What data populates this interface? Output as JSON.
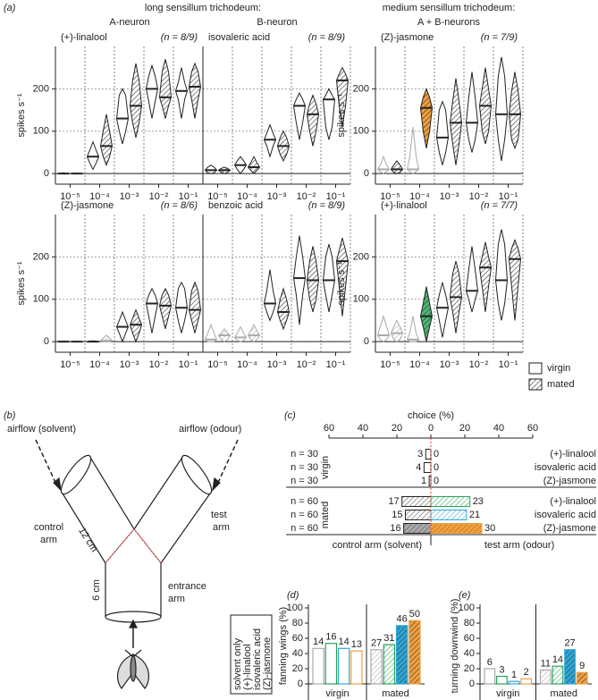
{
  "figure": {
    "panel": "(a)",
    "groups": [
      {
        "title": "long sensillum trichodeum:",
        "neurons": [
          "A-neuron",
          "B-neuron"
        ]
      },
      {
        "title": "medium sensillum trichodeum:",
        "neurons": [
          "A + B-neurons"
        ]
      }
    ],
    "legend": [
      {
        "label": "virgin",
        "hatch": false
      },
      {
        "label": "mated",
        "hatch": true
      }
    ]
  },
  "diagram": {
    "panel": "(b)",
    "airflow_left": "airflow (solvent)",
    "airflow_right": "airflow (odour)",
    "control_arm": [
      "control",
      "arm"
    ],
    "test_arm": [
      "test",
      "arm"
    ],
    "arm_length": "12 cm",
    "stem_length": "6 cm",
    "entrance_arm": [
      "entrance",
      "arm"
    ]
  },
  "chart_data": [
    {
      "type": "violin",
      "title": "(+)-linalool",
      "title_color": "#2aa357",
      "n_label": "(n = 8/9)",
      "ylabel": "spikes s⁻¹",
      "categories": [
        "10⁻⁵",
        "10⁻⁴",
        "10⁻³",
        "10⁻²",
        "10⁻¹"
      ],
      "ylim": [
        -25,
        300
      ],
      "yticks": [
        0,
        100,
        200
      ],
      "grid": true,
      "series": [
        {
          "hatch": false,
          "min": [
            0,
            10,
            70,
            130,
            130
          ],
          "q1": [
            0,
            25,
            100,
            170,
            175
          ],
          "median": [
            0,
            40,
            130,
            200,
            195
          ],
          "q3": [
            0,
            55,
            185,
            230,
            215
          ],
          "max": [
            2,
            75,
            200,
            255,
            250
          ],
          "edge_colors": [
            "#222222",
            "#222222",
            "#222222",
            "#222222",
            "#222222"
          ],
          "fill_colors": [
            "#ffffff",
            "#ffffff",
            "#ffffff",
            "#ffffff",
            "#ffffff"
          ]
        },
        {
          "hatch": true,
          "min": [
            0,
            20,
            85,
            130,
            130
          ],
          "q1": [
            0,
            40,
            120,
            160,
            175
          ],
          "median": [
            0,
            65,
            160,
            180,
            205
          ],
          "q3": [
            0,
            100,
            220,
            240,
            240
          ],
          "max": [
            1,
            140,
            260,
            270,
            260
          ],
          "edge_colors": [
            "#222222",
            "#222222",
            "#222222",
            "#222222",
            "#222222"
          ],
          "fill_colors": [
            "#ffffff",
            "#ffffff",
            "#ffffff",
            "#ffffff",
            "#ffffff"
          ]
        }
      ]
    },
    {
      "type": "violin",
      "title": "isovaleric acid",
      "title_color": "#2ea6d6",
      "n_label": "(n = 8/9)",
      "categories": [
        "10⁻⁵",
        "10⁻⁴",
        "10⁻³",
        "10⁻²",
        "10⁻¹"
      ],
      "ylim": [
        -25,
        300
      ],
      "yticks": [
        0,
        100,
        200
      ],
      "grid": true,
      "series": [
        {
          "hatch": false,
          "min": [
            0,
            0,
            40,
            80,
            80
          ],
          "q1": [
            2,
            10,
            65,
            120,
            110
          ],
          "median": [
            8,
            20,
            80,
            160,
            175
          ],
          "q3": [
            15,
            30,
            95,
            175,
            185
          ],
          "max": [
            20,
            40,
            115,
            190,
            200
          ],
          "edge_colors": [
            "#222222",
            "#222222",
            "#222222",
            "#222222",
            "#222222"
          ],
          "fill_colors": [
            "#ffffff",
            "#ffffff",
            "#ffffff",
            "#ffffff",
            "#ffffff"
          ]
        },
        {
          "hatch": true,
          "min": [
            0,
            0,
            30,
            65,
            110
          ],
          "q1": [
            3,
            8,
            45,
            100,
            160
          ],
          "median": [
            8,
            15,
            65,
            140,
            220
          ],
          "q3": [
            12,
            25,
            85,
            165,
            235
          ],
          "max": [
            15,
            40,
            100,
            185,
            250
          ],
          "edge_colors": [
            "#222222",
            "#222222",
            "#222222",
            "#222222",
            "#222222"
          ],
          "fill_colors": [
            "#ffffff",
            "#ffffff",
            "#ffffff",
            "#ffffff",
            "#ffffff"
          ]
        }
      ]
    },
    {
      "type": "violin",
      "title": "(Z)-jasmone",
      "title_color": "#f0a040",
      "n_label": "(n = 7/9)",
      "ylabel": "spikes s⁻¹",
      "categories": [
        "10⁻⁵",
        "10⁻⁴",
        "10⁻³",
        "10⁻²",
        "10⁻¹"
      ],
      "ylim": [
        -25,
        300
      ],
      "yticks": [
        0,
        100,
        200
      ],
      "grid": true,
      "series": [
        {
          "hatch": false,
          "min": [
            0,
            0,
            20,
            50,
            30
          ],
          "q1": [
            5,
            5,
            50,
            80,
            80
          ],
          "median": [
            10,
            10,
            85,
            120,
            140
          ],
          "q3": [
            20,
            40,
            150,
            180,
            230
          ],
          "max": [
            40,
            110,
            170,
            240,
            275
          ],
          "edge_colors": [
            "#aaaaaa",
            "#aaaaaa",
            "#222222",
            "#222222",
            "#222222"
          ],
          "fill_colors": [
            "#ffffff",
            "#ffffff",
            "#ffffff",
            "#ffffff",
            "#ffffff"
          ]
        },
        {
          "hatch": true,
          "min": [
            0,
            60,
            20,
            70,
            60
          ],
          "q1": [
            3,
            100,
            70,
            100,
            80
          ],
          "median": [
            10,
            155,
            120,
            160,
            140
          ],
          "q3": [
            20,
            180,
            170,
            200,
            195
          ],
          "max": [
            30,
            200,
            225,
            250,
            240
          ],
          "edge_colors": [
            "#222222",
            "#222222",
            "#222222",
            "#222222",
            "#222222"
          ],
          "fill_colors": [
            "#ffffff",
            "#f0a040",
            "#ffffff",
            "#ffffff",
            "#ffffff"
          ]
        }
      ]
    },
    {
      "type": "violin",
      "title": "(Z)-jasmone",
      "title_color": "#f0a040",
      "n_label": "(n = 8/6)",
      "ylabel": "spikes s⁻¹",
      "categories": [
        "10⁻⁵",
        "10⁻⁴",
        "10⁻³",
        "10⁻²",
        "10⁻¹"
      ],
      "ylim": [
        -25,
        300
      ],
      "yticks": [
        0,
        100,
        200
      ],
      "grid": true,
      "series": [
        {
          "hatch": false,
          "min": [
            0,
            0,
            0,
            20,
            20
          ],
          "q1": [
            0,
            0,
            20,
            60,
            50
          ],
          "median": [
            0,
            0,
            35,
            90,
            80
          ],
          "q3": [
            0,
            1,
            50,
            110,
            125
          ],
          "max": [
            1,
            2,
            70,
            125,
            140
          ],
          "edge_colors": [
            "#222222",
            "#222222",
            "#222222",
            "#222222",
            "#222222"
          ],
          "fill_colors": [
            "#ffffff",
            "#ffffff",
            "#ffffff",
            "#ffffff",
            "#ffffff"
          ]
        },
        {
          "hatch": true,
          "min": [
            0,
            0,
            0,
            30,
            20
          ],
          "q1": [
            0,
            0,
            20,
            60,
            50
          ],
          "median": [
            0,
            2,
            40,
            85,
            75
          ],
          "q3": [
            0,
            8,
            55,
            110,
            120
          ],
          "max": [
            1,
            15,
            75,
            125,
            140
          ],
          "edge_colors": [
            "#222222",
            "#aaaaaa",
            "#222222",
            "#222222",
            "#222222"
          ],
          "fill_colors": [
            "#ffffff",
            "#ffffff",
            "#ffffff",
            "#ffffff",
            "#ffffff"
          ]
        }
      ]
    },
    {
      "type": "violin",
      "title": "benzoic acid",
      "title_color": "#e8403a",
      "n_label": "(n = 8/9)",
      "categories": [
        "10⁻⁵",
        "10⁻⁴",
        "10⁻³",
        "10⁻²",
        "10⁻¹"
      ],
      "ylim": [
        -25,
        300
      ],
      "yticks": [
        0,
        100,
        200
      ],
      "grid": true,
      "series": [
        {
          "hatch": false,
          "min": [
            0,
            0,
            50,
            40,
            70
          ],
          "q1": [
            0,
            3,
            70,
            110,
            110
          ],
          "median": [
            5,
            10,
            90,
            150,
            145
          ],
          "q3": [
            20,
            20,
            120,
            200,
            200
          ],
          "max": [
            40,
            35,
            170,
            250,
            230
          ],
          "edge_colors": [
            "#aaaaaa",
            "#aaaaaa",
            "#222222",
            "#222222",
            "#222222"
          ],
          "fill_colors": [
            "#ffffff",
            "#ffffff",
            "#ffffff",
            "#ffffff",
            "#ffffff"
          ]
        },
        {
          "hatch": true,
          "min": [
            0,
            0,
            30,
            70,
            60
          ],
          "q1": [
            5,
            5,
            50,
            100,
            130
          ],
          "median": [
            15,
            15,
            70,
            145,
            190
          ],
          "q3": [
            20,
            25,
            100,
            190,
            215
          ],
          "max": [
            30,
            40,
            125,
            225,
            245
          ],
          "edge_colors": [
            "#aaaaaa",
            "#aaaaaa",
            "#222222",
            "#222222",
            "#222222"
          ],
          "fill_colors": [
            "#ffffff",
            "#ffffff",
            "#ffffff",
            "#ffffff",
            "#ffffff"
          ]
        }
      ]
    },
    {
      "type": "violin",
      "title": "(+)-linalool",
      "title_color": "#2aa357",
      "n_label": "(n = 7/7)",
      "ylabel": "spikes s⁻¹",
      "categories": [
        "10⁻⁵",
        "10⁻⁴",
        "10⁻³",
        "10⁻²",
        "10⁻¹"
      ],
      "ylim": [
        -25,
        300
      ],
      "yticks": [
        0,
        100,
        200
      ],
      "grid": true,
      "series": [
        {
          "hatch": false,
          "min": [
            0,
            0,
            10,
            70,
            50
          ],
          "q1": [
            5,
            0,
            50,
            100,
            90
          ],
          "median": [
            15,
            5,
            80,
            120,
            145
          ],
          "q3": [
            35,
            20,
            110,
            170,
            230
          ],
          "max": [
            60,
            60,
            140,
            225,
            265
          ],
          "edge_colors": [
            "#aaaaaa",
            "#aaaaaa",
            "#222222",
            "#222222",
            "#222222"
          ],
          "fill_colors": [
            "#ffffff",
            "#ffffff",
            "#ffffff",
            "#ffffff",
            "#ffffff"
          ]
        },
        {
          "hatch": true,
          "min": [
            0,
            0,
            20,
            70,
            50
          ],
          "q1": [
            5,
            35,
            70,
            130,
            130
          ],
          "median": [
            20,
            60,
            105,
            175,
            195
          ],
          "q3": [
            35,
            90,
            160,
            200,
            220
          ],
          "max": [
            50,
            130,
            190,
            235,
            240
          ],
          "edge_colors": [
            "#aaaaaa",
            "#222222",
            "#222222",
            "#222222",
            "#222222"
          ],
          "fill_colors": [
            "#ffffff",
            "#4fb874",
            "#ffffff",
            "#ffffff",
            "#ffffff"
          ]
        }
      ]
    },
    {
      "type": "choice",
      "panel": "(c)",
      "title": "choice (%)",
      "xlim": [
        -60,
        60
      ],
      "xticks": [
        {
          "value": -60,
          "label": "60"
        },
        {
          "value": -40,
          "label": "40"
        },
        {
          "value": -20,
          "label": "20"
        },
        0,
        20,
        40,
        60
      ],
      "xlabels": [
        "control arm (solvent)",
        "test arm (odour)"
      ],
      "groups": [
        {
          "name": "virgin",
          "style": "outline",
          "rows": [
            {
              "n": "n = 30",
              "name": "(+)-linalool",
              "control": 3,
              "test": 0
            },
            {
              "n": "n = 30",
              "name": "isovaleric acid",
              "control": 4,
              "test": 0
            },
            {
              "n": "n = 30",
              "name": "(Z)-jasmone",
              "control": 1,
              "test": 0
            }
          ]
        },
        {
          "name": "mated",
          "style": "hatch",
          "rows": [
            {
              "n": "n = 60",
              "name": "(+)-linalool",
              "color": "#2aa357",
              "filled": false,
              "control": 17,
              "test": 23
            },
            {
              "n": "n = 60",
              "name": "isovaleric acid",
              "color": "#2ea6d6",
              "filled": false,
              "control": 15,
              "test": 21
            },
            {
              "n": "n = 60",
              "name": "(Z)-jasmone",
              "color": "#f0a040",
              "filled": true,
              "control": 16,
              "test": 30
            }
          ]
        }
      ]
    },
    {
      "type": "bar",
      "panel": "(d)",
      "ylabel": "fanning wings (%)",
      "categories": [
        "virgin",
        "mated"
      ],
      "ylim": [
        0,
        100
      ],
      "yticks": [
        0,
        20,
        40,
        60,
        80,
        100
      ],
      "series": [
        {
          "name": "solvent only",
          "color": "#aaaaaa",
          "hatch": [
            false,
            true
          ],
          "filled": [
            false,
            false
          ],
          "values": [
            46.7,
            45
          ],
          "counts": [
            14,
            27
          ]
        },
        {
          "name": "(+)-linalool",
          "color": "#2aa357",
          "hatch": [
            false,
            true
          ],
          "filled": [
            false,
            false
          ],
          "values": [
            53.3,
            51.7
          ],
          "counts": [
            16,
            31
          ]
        },
        {
          "name": "isovaleric acid",
          "color": "#2ea6d6",
          "hatch": [
            false,
            true
          ],
          "filled": [
            false,
            true
          ],
          "values": [
            46.7,
            76.7
          ],
          "counts": [
            14,
            46
          ]
        },
        {
          "name": "(Z)-jasmone",
          "color": "#f0a040",
          "hatch": [
            false,
            true
          ],
          "filled": [
            false,
            true
          ],
          "values": [
            43.3,
            83.3
          ],
          "counts": [
            13,
            50
          ]
        }
      ]
    },
    {
      "type": "bar",
      "panel": "(e)",
      "ylabel": "turning downwind (%)",
      "categories": [
        "virgin",
        "mated"
      ],
      "ylim": [
        0,
        100
      ],
      "yticks": [
        0,
        20,
        40,
        60,
        80,
        100
      ],
      "series": [
        {
          "color": "#aaaaaa",
          "hatch": [
            false,
            true
          ],
          "filled": [
            false,
            false
          ],
          "values": [
            20,
            18.3
          ],
          "counts": [
            6,
            11
          ]
        },
        {
          "color": "#2aa357",
          "hatch": [
            false,
            true
          ],
          "filled": [
            false,
            false
          ],
          "values": [
            10,
            23.3
          ],
          "counts": [
            3,
            14
          ]
        },
        {
          "color": "#2ea6d6",
          "hatch": [
            false,
            true
          ],
          "filled": [
            false,
            true
          ],
          "values": [
            3.3,
            45
          ],
          "counts": [
            1,
            27
          ]
        },
        {
          "color": "#f0a040",
          "hatch": [
            false,
            true
          ],
          "filled": [
            false,
            true
          ],
          "values": [
            6.7,
            15
          ],
          "counts": [
            2,
            9
          ]
        }
      ]
    }
  ]
}
